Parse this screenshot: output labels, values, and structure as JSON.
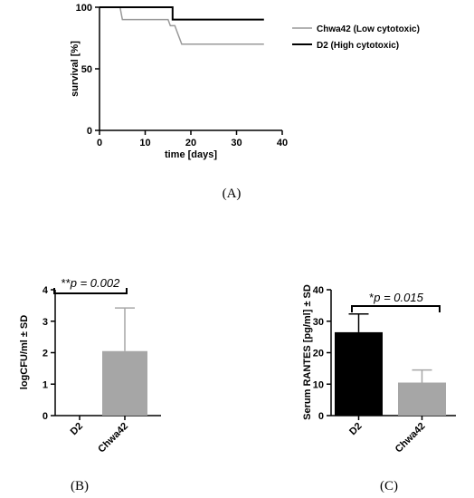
{
  "panel_labels": {
    "a": "(A)",
    "b": "(B)",
    "c": "(C)"
  },
  "colors": {
    "line_low": "#999999",
    "line_high": "#000000",
    "bar_dark": "#000000",
    "bar_light": "#a6a6a6",
    "error_light": "#a6a6a6",
    "error_dark": "#000000"
  },
  "chart_data": [
    {
      "type": "line",
      "panel": "A",
      "xlabel": "time [days]",
      "ylabel": "survival [%]",
      "xlim": [
        0,
        40
      ],
      "ylim": [
        0,
        100
      ],
      "xticks": [
        0,
        10,
        20,
        30,
        40
      ],
      "yticks": [
        0,
        50,
        100
      ],
      "legend_position": "right",
      "series": [
        {
          "name": "Chwa42 (Low cytotoxic)",
          "x": [
            0,
            4.5,
            5,
            15,
            15.5,
            16.5,
            17,
            18,
            36
          ],
          "y": [
            100,
            100,
            90,
            90,
            85,
            85,
            80,
            70,
            70
          ]
        },
        {
          "name": "D2 (High cytotoxic)",
          "x": [
            0,
            16,
            16,
            36
          ],
          "y": [
            100,
            100,
            90,
            90
          ]
        }
      ]
    },
    {
      "type": "bar",
      "panel": "B",
      "categories": [
        "D2",
        "Chwa42"
      ],
      "values": [
        0,
        2.05
      ],
      "errors": [
        0,
        1.37
      ],
      "ylabel": "logCFU/ml ± SD",
      "ylim": [
        0,
        4
      ],
      "yticks": [
        0,
        1,
        2,
        3,
        4
      ],
      "annotation": {
        "prefix": "**",
        "text": "p = 0.002"
      }
    },
    {
      "type": "bar",
      "panel": "C",
      "categories": [
        "D2",
        "Chwa42"
      ],
      "values": [
        26.5,
        10.5
      ],
      "errors": [
        5.8,
        4.0
      ],
      "ylabel": "Serum RANTES [pg/ml] ± SD",
      "ylim": [
        0,
        40
      ],
      "yticks": [
        0,
        10,
        20,
        30,
        40
      ],
      "annotation": {
        "prefix": "*",
        "text": "p = 0.015"
      }
    }
  ]
}
